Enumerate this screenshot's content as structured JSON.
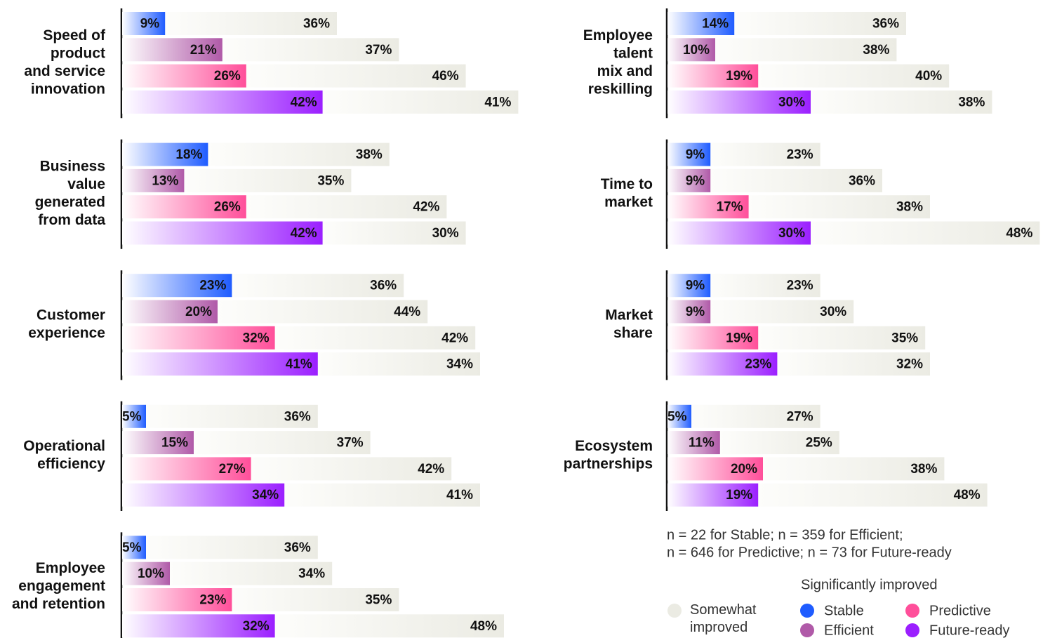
{
  "chart_data": {
    "type": "bar",
    "categories": [
      [
        "Speed of",
        "product",
        "and service",
        "innovation"
      ],
      [
        "Business",
        "value",
        "generated",
        "from data"
      ],
      [
        "Customer",
        "experience"
      ],
      [
        "Operational",
        "efficiency"
      ],
      [
        "Employee",
        "engagement",
        "and retention"
      ],
      [
        "Employee",
        "talent",
        "mix and",
        "reskilling"
      ],
      [
        "Time to",
        "market"
      ],
      [
        "Market",
        "share"
      ],
      [
        "Ecosystem",
        "partnerships"
      ]
    ],
    "legend_title": "Significantly improved",
    "series": [
      {
        "name": "Stable",
        "color": "#1f5cff",
        "values": [
          9,
          18,
          23,
          5,
          5,
          14,
          9,
          9,
          5
        ],
        "value_labels": [
          "9%",
          "18%",
          "23%",
          "5%",
          "5%",
          "14%",
          "9%",
          "9%",
          "5%"
        ]
      },
      {
        "name": "Efficient",
        "color": "#b05aa8",
        "values": [
          21,
          13,
          20,
          15,
          10,
          10,
          9,
          9,
          11
        ],
        "value_labels": [
          "21%",
          "13%",
          "20%",
          "15%",
          "10%",
          "10%",
          "9%",
          "9%",
          "11%"
        ]
      },
      {
        "name": "Predictive",
        "color": "#ff4f9a",
        "values": [
          26,
          26,
          32,
          27,
          23,
          19,
          17,
          19,
          20
        ],
        "value_labels": [
          "26%",
          "26%",
          "32%",
          "27%",
          "23%",
          "19%",
          "17%",
          "19%",
          "20%"
        ]
      },
      {
        "name": "Future-ready",
        "color": "#9b1fff",
        "values": [
          42,
          42,
          41,
          34,
          32,
          30,
          30,
          23,
          19
        ],
        "value_labels": [
          "42%",
          "42%",
          "41%",
          "34%",
          "32%",
          "30%",
          "30%",
          "23%",
          "19%"
        ]
      }
    ],
    "somewhat": {
      "name": "Somewhat improved",
      "color": "#ebebe3",
      "values": [
        [
          36,
          37,
          46,
          41
        ],
        [
          38,
          35,
          42,
          30
        ],
        [
          36,
          44,
          42,
          34
        ],
        [
          36,
          37,
          42,
          41
        ],
        [
          36,
          34,
          35,
          48
        ],
        [
          36,
          38,
          40,
          38
        ],
        [
          23,
          36,
          38,
          48
        ],
        [
          23,
          30,
          35,
          32
        ],
        [
          27,
          25,
          38,
          48
        ]
      ],
      "value_labels": [
        [
          "36%",
          "37%",
          "46%",
          "41%"
        ],
        [
          "38%",
          "35%",
          "42%",
          "30%"
        ],
        [
          "36%",
          "44%",
          "42%",
          "34%"
        ],
        [
          "36%",
          "37%",
          "42%",
          "41%"
        ],
        [
          "36%",
          "34%",
          "35%",
          "48%"
        ],
        [
          "36%",
          "38%",
          "40%",
          "38%"
        ],
        [
          "23%",
          "36%",
          "38%",
          "48%"
        ],
        [
          "23%",
          "30%",
          "35%",
          "32%"
        ],
        [
          "27%",
          "25%",
          "38%",
          "48%"
        ]
      ]
    },
    "note": [
      "n = 22 for Stable; n = 359 for Efficient;",
      "n = 646 for Predictive; n = 73 for Future-ready"
    ]
  }
}
